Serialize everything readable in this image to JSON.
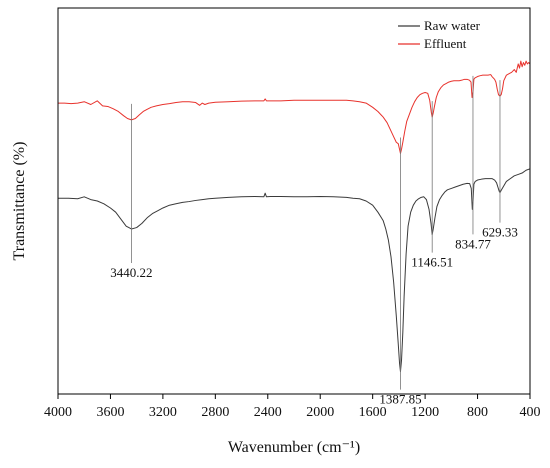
{
  "chart_data": {
    "type": "line",
    "xlabel": "Wavenumber (cm⁻¹)",
    "ylabel": "Transmittance (%)",
    "xlim": [
      4000,
      400
    ],
    "x_reversed": true,
    "y_ticks_shown": false,
    "grid": false,
    "legend_position": "top-right",
    "x_ticks": [
      4000,
      3600,
      3200,
      2800,
      2400,
      2000,
      1600,
      1200,
      800,
      400
    ],
    "x_tick_labels": [
      "4000",
      "3600",
      "3200",
      "2800",
      "2400",
      "2000",
      "1600",
      "1200",
      "800",
      "400"
    ],
    "series": [
      {
        "name": "Raw water",
        "color": "#3a3a3a",
        "x": [
          4000,
          3920,
          3850,
          3800,
          3750,
          3700,
          3650,
          3600,
          3560,
          3520,
          3480,
          3440,
          3400,
          3360,
          3320,
          3280,
          3240,
          3200,
          3150,
          3100,
          3050,
          3000,
          2950,
          2900,
          2850,
          2800,
          2700,
          2600,
          2500,
          2430,
          2420,
          2410,
          2380,
          2300,
          2200,
          2100,
          2000,
          1900,
          1800,
          1750,
          1700,
          1650,
          1600,
          1560,
          1520,
          1500,
          1480,
          1460,
          1440,
          1420,
          1405,
          1395,
          1388,
          1380,
          1370,
          1360,
          1345,
          1330,
          1310,
          1290,
          1270,
          1250,
          1230,
          1210,
          1190,
          1170,
          1155,
          1146,
          1138,
          1125,
          1110,
          1090,
          1070,
          1050,
          1030,
          1000,
          970,
          940,
          910,
          880,
          860,
          848,
          840,
          835,
          828,
          818,
          800,
          770,
          740,
          710,
          690,
          670,
          655,
          645,
          635,
          629,
          620,
          605,
          580,
          550,
          520,
          490,
          460,
          430,
          400
        ],
        "y": [
          62.0,
          62.0,
          61.8,
          62.5,
          61.5,
          61.0,
          60.0,
          58.5,
          57.0,
          54.5,
          52.0,
          51.0,
          51.5,
          53.0,
          55.0,
          56.5,
          57.5,
          58.5,
          59.5,
          60.0,
          60.5,
          60.8,
          61.2,
          61.5,
          61.8,
          62.0,
          62.3,
          62.5,
          62.6,
          62.5,
          63.8,
          62.5,
          62.6,
          62.6,
          62.5,
          62.5,
          62.6,
          62.5,
          62.3,
          62.0,
          61.8,
          61.0,
          59.5,
          57.0,
          54.0,
          51.0,
          47.0,
          41.0,
          32.0,
          20.0,
          10.0,
          3.0,
          0.0,
          4.0,
          14.0,
          27.0,
          42.0,
          52.0,
          57.0,
          59.5,
          61.0,
          61.8,
          62.3,
          62.5,
          61.5,
          58.0,
          53.0,
          49.0,
          51.0,
          55.0,
          59.0,
          61.5,
          63.0,
          64.2,
          65.0,
          65.5,
          66.0,
          66.5,
          67.0,
          67.3,
          67.2,
          65.5,
          58.0,
          60.5,
          67.0,
          68.0,
          68.5,
          68.8,
          69.0,
          69.0,
          69.0,
          68.5,
          67.5,
          66.0,
          64.5,
          64.0,
          64.8,
          66.0,
          68.0,
          69.0,
          70.0,
          70.5,
          71.0,
          72.0,
          72.5
        ]
      },
      {
        "name": "Effluent",
        "color": "#e8322c",
        "x": [
          4000,
          3950,
          3900,
          3850,
          3800,
          3750,
          3700,
          3660,
          3620,
          3580,
          3540,
          3500,
          3470,
          3440,
          3410,
          3380,
          3350,
          3320,
          3290,
          3250,
          3200,
          3150,
          3100,
          3050,
          3000,
          2950,
          2920,
          2900,
          2880,
          2850,
          2800,
          2700,
          2600,
          2500,
          2430,
          2420,
          2410,
          2380,
          2300,
          2200,
          2100,
          2000,
          1900,
          1800,
          1750,
          1700,
          1650,
          1600,
          1560,
          1520,
          1490,
          1460,
          1440,
          1420,
          1405,
          1395,
          1388,
          1380,
          1370,
          1355,
          1340,
          1320,
          1300,
          1280,
          1260,
          1240,
          1220,
          1200,
          1180,
          1165,
          1152,
          1146,
          1138,
          1128,
          1115,
          1100,
          1080,
          1060,
          1040,
          1020,
          1000,
          980,
          960,
          940,
          920,
          900,
          880,
          862,
          850,
          842,
          835,
          828,
          820,
          800,
          780,
          760,
          740,
          720,
          700,
          690,
          680,
          670,
          660,
          650,
          640,
          629,
          620,
          610,
          600,
          580,
          560,
          540,
          520,
          505,
          490,
          480,
          470,
          460,
          450,
          440,
          430,
          420,
          410,
          400
        ],
        "y": [
          96.0,
          96.0,
          95.8,
          96.0,
          96.5,
          95.5,
          96.8,
          95.0,
          94.8,
          94.0,
          93.0,
          91.5,
          90.5,
          90.0,
          90.5,
          91.8,
          93.0,
          93.8,
          94.5,
          95.0,
          95.5,
          95.8,
          96.2,
          96.5,
          96.5,
          96.2,
          95.2,
          96.0,
          95.5,
          96.0,
          96.3,
          96.5,
          96.7,
          96.8,
          96.8,
          97.5,
          96.8,
          96.8,
          96.8,
          97.0,
          97.0,
          97.0,
          97.0,
          97.0,
          96.8,
          96.5,
          96.0,
          94.5,
          93.0,
          91.0,
          89.0,
          86.0,
          84.0,
          82.0,
          81.5,
          79.5,
          78.0,
          79.5,
          82.0,
          86.0,
          89.5,
          92.0,
          94.5,
          96.5,
          98.0,
          99.0,
          99.5,
          99.8,
          99.5,
          97.0,
          92.5,
          91.0,
          92.5,
          95.0,
          98.0,
          100.0,
          101.5,
          102.5,
          103.0,
          103.5,
          103.8,
          104.0,
          104.0,
          104.0,
          104.2,
          104.5,
          104.5,
          104.2,
          103.5,
          98.0,
          100.0,
          104.5,
          105.0,
          105.5,
          105.8,
          106.0,
          106.0,
          106.0,
          106.2,
          105.5,
          105.0,
          104.5,
          103.5,
          101.0,
          99.0,
          98.5,
          99.0,
          101.0,
          104.0,
          106.0,
          106.5,
          107.0,
          108.0,
          107.0,
          110.0,
          108.5,
          111.0,
          109.0,
          110.5,
          109.5,
          111.0,
          110.0,
          110.5,
          110.0
        ]
      }
    ],
    "annotations": [
      {
        "text": "3440.22",
        "x": 3440,
        "series": "Raw water",
        "line_top_series": "Effluent",
        "label_side": "below"
      },
      {
        "text": "1387.85",
        "x": 1388,
        "series": "Raw water",
        "line_top_series": "Effluent",
        "label_side": "below"
      },
      {
        "text": "1146.51",
        "x": 1146,
        "series": "Raw water",
        "line_top_series": "Effluent",
        "label_side": "below"
      },
      {
        "text": "834.77",
        "x": 835,
        "series": "Raw water",
        "line_top_series": "Effluent",
        "label_side": "below"
      },
      {
        "text": "629.33",
        "x": 629,
        "series": "Raw water",
        "line_top_series": "Effluent",
        "label_side": "below"
      }
    ]
  }
}
